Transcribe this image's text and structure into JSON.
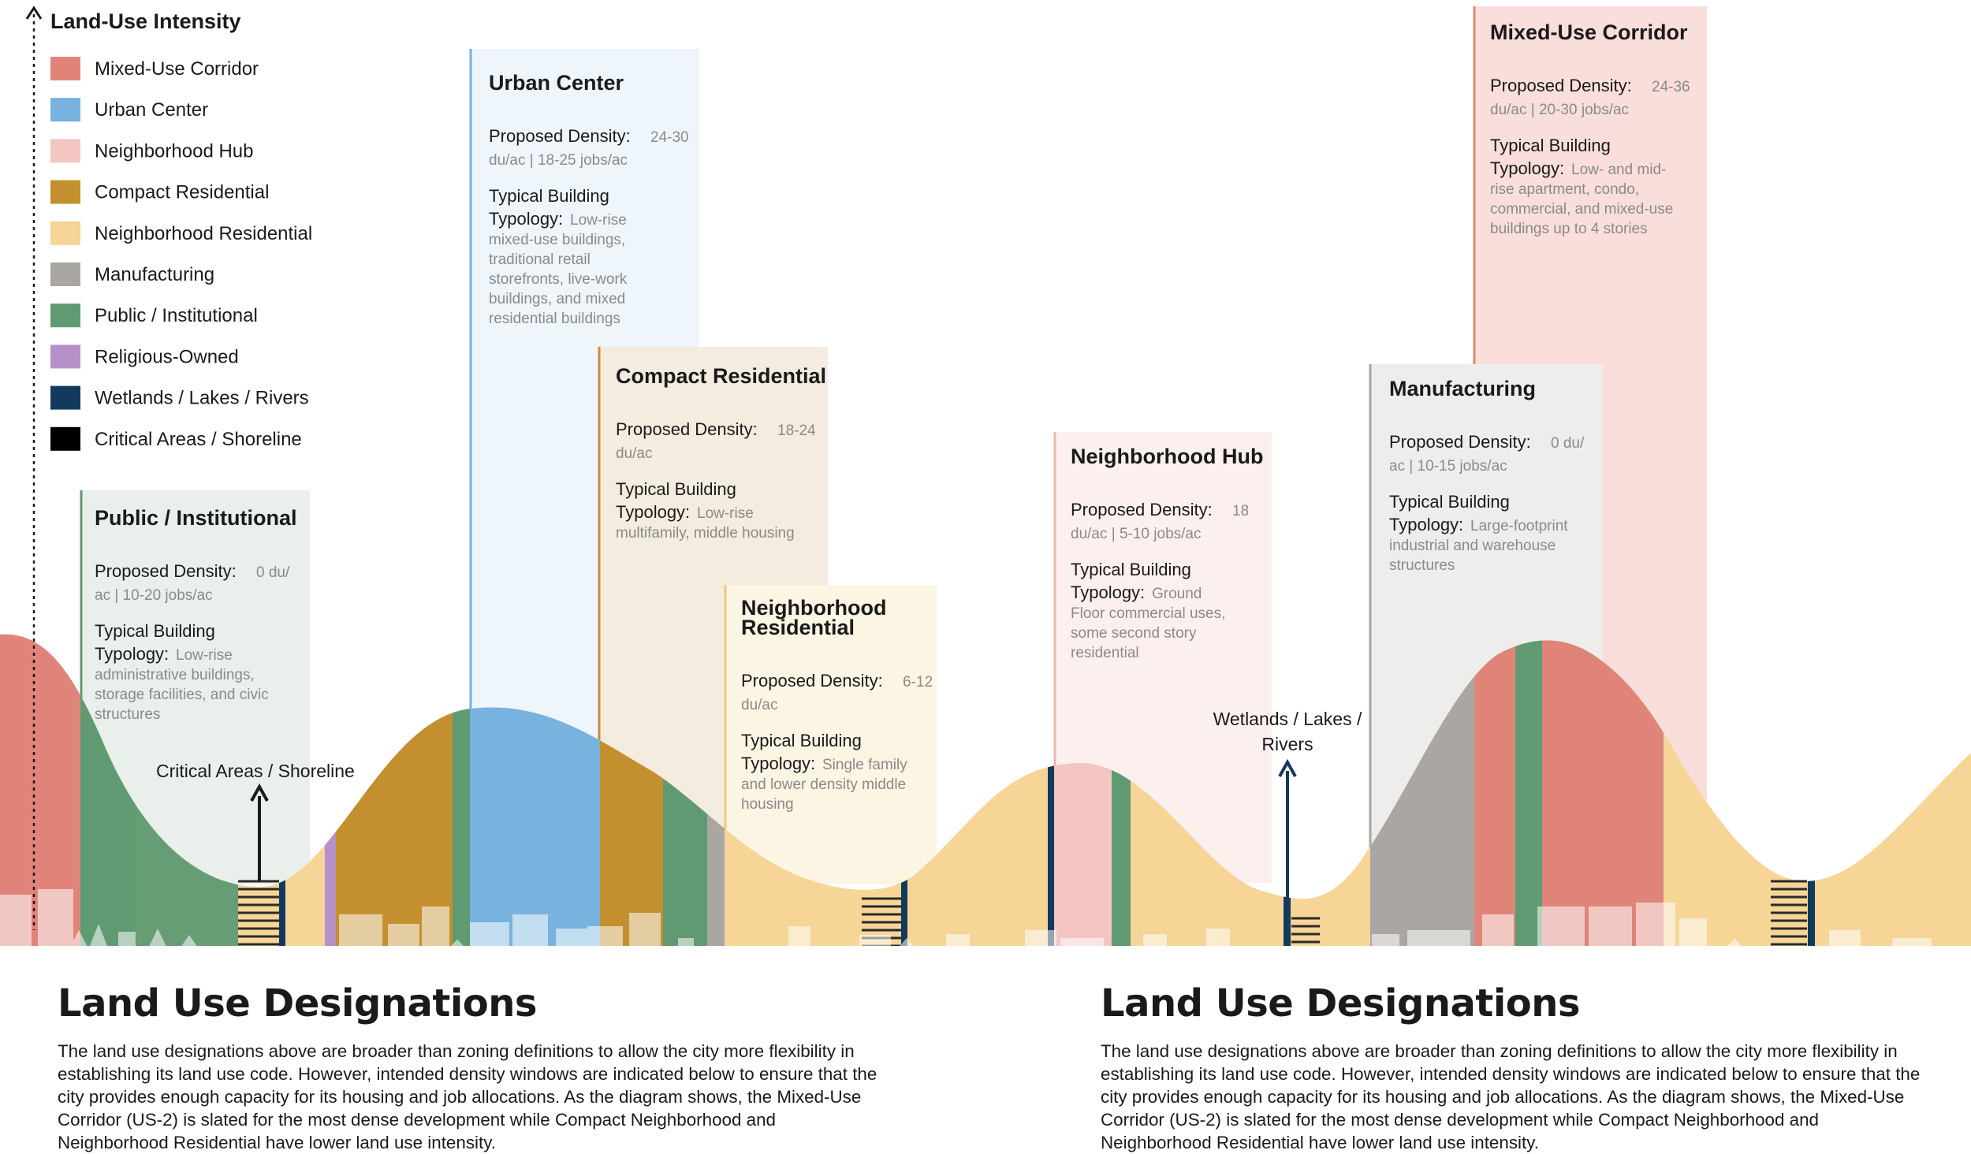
{
  "legend": {
    "title": "Land-Use Intensity",
    "items": [
      {
        "label": "Mixed-Use Corridor",
        "color": "#e0847a"
      },
      {
        "label": "Urban Center",
        "color": "#78b2df"
      },
      {
        "label": "Neighborhood Hub",
        "color": "#f3c6c2"
      },
      {
        "label": "Compact Residential",
        "color": "#c4902f"
      },
      {
        "label": "Neighborhood Residential",
        "color": "#f6d597"
      },
      {
        "label": "Manufacturing",
        "color": "#aaa7a3"
      },
      {
        "label": "Public / Institutional",
        "color": "#5f9a73"
      },
      {
        "label": "Religious-Owned",
        "color": "#b690c8"
      },
      {
        "label": "Wetlands / Lakes / Rivers",
        "color": "#133a5e"
      },
      {
        "label": "Critical Areas / Shoreline",
        "color": "#000000"
      }
    ]
  },
  "panels": [
    {
      "id": "public",
      "title": "Public / Institutional",
      "density_key": "Proposed Density:",
      "density_val": [
        "0 du/",
        "ac | 10-20 jobs/ac"
      ],
      "typology_key": [
        "Typical Building",
        "Typology:"
      ],
      "typology_val": [
        "Low-rise",
        "administrative buildings,",
        "storage facilities, and civic",
        "structures"
      ]
    },
    {
      "id": "urban",
      "title": "Urban Center",
      "density_key": "Proposed Density:",
      "density_val": [
        "24-30",
        "du/ac | 18-25 jobs/ac"
      ],
      "typology_key": [
        "Typical Building",
        "Typology:"
      ],
      "typology_val": [
        "Low-rise",
        "mixed-use buildings,",
        "traditional retail",
        "storefronts, live-work",
        "buildings, and mixed",
        "residential buildings"
      ]
    },
    {
      "id": "compact",
      "title": "Compact Residential",
      "density_key": "Proposed Density:",
      "density_val": [
        "18-24",
        "du/ac"
      ],
      "typology_key": [
        "Typical Building",
        "Typology:"
      ],
      "typology_val": [
        "Low-rise",
        "multifamily, middle housing"
      ]
    },
    {
      "id": "nres",
      "title": [
        "Neighborhood",
        "Residential"
      ],
      "density_key": "Proposed Density:",
      "density_val": [
        "6-12",
        "du/ac"
      ],
      "typology_key": [
        "Typical Building",
        "Typology:"
      ],
      "typology_val": [
        "Single family",
        "and lower density middle",
        "housing"
      ]
    },
    {
      "id": "hub",
      "title": "Neighborhood Hub",
      "density_key": "Proposed Density:",
      "density_val": [
        "18",
        "du/ac | 5-10 jobs/ac"
      ],
      "typology_key": [
        "Typical Building",
        "Typology:"
      ],
      "typology_val": [
        "Ground",
        "Floor commercial uses,",
        "some second story",
        "residential"
      ]
    },
    {
      "id": "mfg",
      "title": "Manufacturing",
      "density_key": "Proposed Density:",
      "density_val": [
        "0 du/",
        "ac | 10-15 jobs/ac"
      ],
      "typology_key": [
        "Typical Building",
        "Typology:"
      ],
      "typology_val": [
        "Large-footprint",
        "industrial and warehouse",
        "structures"
      ]
    },
    {
      "id": "mixed",
      "title": "Mixed-Use Corridor",
      "density_key": "Proposed Density:",
      "density_val": [
        "24-36",
        "du/ac | 20-30 jobs/ac"
      ],
      "typology_key": [
        "Typical Building",
        "Typology:"
      ],
      "typology_val": [
        "Low- and mid-",
        "rise apartment, condo,",
        "commercial, and mixed-use",
        "buildings up to 4 stories"
      ]
    }
  ],
  "annotations": {
    "critical": "Critical Areas / Shoreline",
    "wetlands": [
      "Wetlands / Lakes /",
      "Rivers"
    ]
  },
  "footer": {
    "title_left": "Land Use Designations",
    "body_left": "The land use designations above are broader than zoning definitions to allow the city more flexibility in establishing its land use code. However, intended density windows are indicated below to ensure that the city provides enough capacity for its housing and job allocations. As the diagram shows, the Mixed-Use Corridor (US-2) is slated for the most dense development while Compact Neighborhood and Neighborhood Residential have lower land use intensity.",
    "title_right": "Land Use Designations",
    "body_right": "The land use designations above are broader than zoning definitions to allow the city more flexibility in establishing its land use code. However, intended density windows are indicated below to ensure that the city provides enough capacity for its housing and job allocations. As the diagram shows, the Mixed-Use Corridor (US-2) is slated for the most dense development while Compact Neighborhood and Neighborhood Residential have lower land use intensity."
  }
}
